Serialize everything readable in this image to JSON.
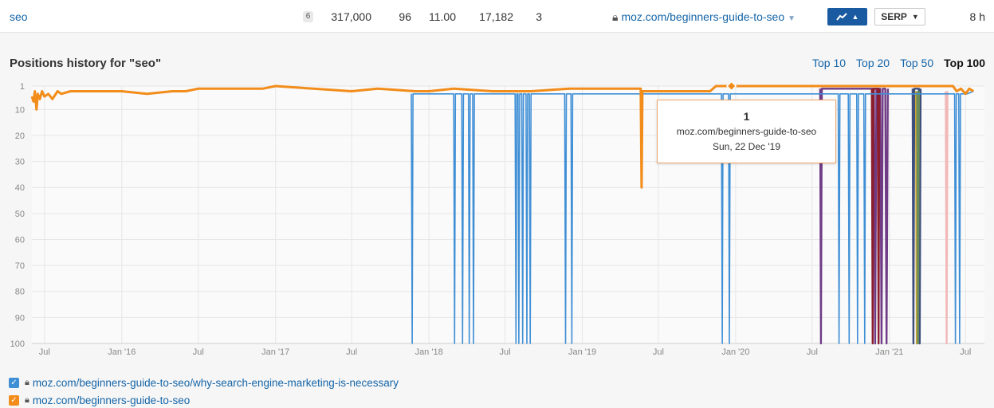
{
  "row": {
    "keyword": "seo",
    "serp_features": "6",
    "volume": "317,000",
    "kd": "96",
    "cpc": "11.00",
    "traffic": "17,182",
    "position": "3",
    "url": "moz.com/beginners-guide-to-seo",
    "serp_label": "SERP",
    "updated": "8 h",
    "trend_icon": "trend-line-icon",
    "accent": "#1a5aa0"
  },
  "section_title": "Positions history for \"seo\"",
  "tabs": [
    {
      "label": "Top 10"
    },
    {
      "label": "Top 20"
    },
    {
      "label": "Top 50"
    },
    {
      "label": "Top 100",
      "active": true
    }
  ],
  "tooltip": {
    "position": "1",
    "url": "moz.com/beginners-guide-to-seo",
    "date": "Sun, 22 Dec '19"
  },
  "legend": [
    {
      "url": "moz.com/beginners-guide-to-seo/why-search-engine-marketing-is-necessary",
      "color": "#3f8fd6",
      "checked": true
    },
    {
      "url": "moz.com/beginners-guide-to-seo",
      "color": "#f28c1a",
      "checked": true
    }
  ],
  "chart_data": {
    "type": "line",
    "y_reversed": true,
    "ylim": [
      1,
      100
    ],
    "y_ticks": [
      1,
      10,
      20,
      30,
      40,
      50,
      60,
      70,
      80,
      90,
      100
    ],
    "x_range": [
      "2015-06-01",
      "2021-08-15"
    ],
    "x_ticks": [
      {
        "date": "2015-07-01",
        "label": "Jul"
      },
      {
        "date": "2016-01-01",
        "label": "Jan '16"
      },
      {
        "date": "2016-07-01",
        "label": "Jul"
      },
      {
        "date": "2017-01-01",
        "label": "Jan '17"
      },
      {
        "date": "2017-07-01",
        "label": "Jul"
      },
      {
        "date": "2018-01-01",
        "label": "Jan '18"
      },
      {
        "date": "2018-07-01",
        "label": "Jul"
      },
      {
        "date": "2019-01-01",
        "label": "Jan '19"
      },
      {
        "date": "2019-07-01",
        "label": "Jul"
      },
      {
        "date": "2020-01-01",
        "label": "Jan '20"
      },
      {
        "date": "2020-07-01",
        "label": "Jul"
      },
      {
        "date": "2021-01-01",
        "label": "Jan '21"
      },
      {
        "date": "2021-07-01",
        "label": "Jul"
      }
    ],
    "grid": true,
    "series": [
      {
        "name": "moz.com/beginners-guide-to-seo/why-search-engine-marketing-is-necessary",
        "color": "#3f8fd6",
        "points": [
          [
            "2017-11-20",
            4
          ],
          [
            "2017-11-22",
            100
          ],
          [
            "2017-11-24",
            4
          ],
          [
            "2018-03-01",
            4
          ],
          [
            "2018-03-03",
            100
          ],
          [
            "2018-03-05",
            4
          ],
          [
            "2018-03-20",
            4
          ],
          [
            "2018-03-22",
            100
          ],
          [
            "2018-03-24",
            4
          ],
          [
            "2018-04-05",
            4
          ],
          [
            "2018-04-07",
            100
          ],
          [
            "2018-04-09",
            4
          ],
          [
            "2018-04-15",
            4
          ],
          [
            "2018-04-17",
            100
          ],
          [
            "2018-04-19",
            4
          ],
          [
            "2018-07-25",
            4
          ],
          [
            "2018-07-27",
            100
          ],
          [
            "2018-07-29",
            4
          ],
          [
            "2018-08-01",
            4
          ],
          [
            "2018-08-03",
            100
          ],
          [
            "2018-08-05",
            4
          ],
          [
            "2018-08-10",
            4
          ],
          [
            "2018-08-12",
            100
          ],
          [
            "2018-08-14",
            4
          ],
          [
            "2018-08-20",
            4
          ],
          [
            "2018-08-22",
            100
          ],
          [
            "2018-08-24",
            4
          ],
          [
            "2018-08-28",
            4
          ],
          [
            "2018-08-30",
            100
          ],
          [
            "2018-09-01",
            4
          ],
          [
            "2018-11-20",
            4
          ],
          [
            "2018-11-22",
            100
          ],
          [
            "2018-11-24",
            4
          ],
          [
            "2018-12-05",
            4
          ],
          [
            "2018-12-07",
            100
          ],
          [
            "2018-12-09",
            4
          ],
          [
            "2019-11-28",
            4
          ],
          [
            "2019-11-30",
            100
          ],
          [
            "2019-12-02",
            4
          ],
          [
            "2019-12-15",
            4
          ],
          [
            "2019-12-17",
            100
          ],
          [
            "2019-12-19",
            4
          ],
          [
            "2020-09-01",
            4
          ],
          [
            "2020-09-03",
            100
          ],
          [
            "2020-09-05",
            4
          ],
          [
            "2020-09-25",
            4
          ],
          [
            "2020-09-27",
            100
          ],
          [
            "2020-09-29",
            4
          ],
          [
            "2020-10-15",
            4
          ],
          [
            "2020-10-17",
            100
          ],
          [
            "2020-10-19",
            4
          ],
          [
            "2020-11-01",
            4
          ],
          [
            "2020-11-03",
            100
          ],
          [
            "2020-11-05",
            4
          ],
          [
            "2021-06-05",
            4
          ],
          [
            "2021-06-07",
            100
          ],
          [
            "2021-06-09",
            4
          ],
          [
            "2021-06-15",
            4
          ],
          [
            "2021-06-17",
            100
          ],
          [
            "2021-06-19",
            4
          ],
          [
            "2021-07-05",
            4
          ],
          [
            "2021-07-20",
            3
          ]
        ]
      },
      {
        "name": "moz.com/beginners-guide-to-seo",
        "color": "#f28c1a",
        "points": [
          [
            "2015-06-01",
            5
          ],
          [
            "2015-06-05",
            7
          ],
          [
            "2015-06-08",
            3
          ],
          [
            "2015-06-12",
            10
          ],
          [
            "2015-06-15",
            4
          ],
          [
            "2015-06-20",
            6
          ],
          [
            "2015-06-25",
            3
          ],
          [
            "2015-07-01",
            5
          ],
          [
            "2015-07-10",
            4
          ],
          [
            "2015-07-20",
            6
          ],
          [
            "2015-08-01",
            3
          ],
          [
            "2015-08-10",
            4
          ],
          [
            "2015-09-01",
            3
          ],
          [
            "2016-01-01",
            3
          ],
          [
            "2016-03-01",
            4
          ],
          [
            "2016-05-01",
            3
          ],
          [
            "2016-06-01",
            3
          ],
          [
            "2016-07-01",
            2
          ],
          [
            "2016-12-01",
            2
          ],
          [
            "2017-01-01",
            1
          ],
          [
            "2017-04-01",
            2
          ],
          [
            "2017-07-01",
            3
          ],
          [
            "2017-09-01",
            2
          ],
          [
            "2017-12-01",
            3
          ],
          [
            "2018-01-01",
            3
          ],
          [
            "2018-03-01",
            2
          ],
          [
            "2018-06-01",
            3
          ],
          [
            "2018-07-01",
            3
          ],
          [
            "2018-09-01",
            3
          ],
          [
            "2018-12-01",
            2
          ],
          [
            "2019-03-01",
            2
          ],
          [
            "2019-05-01",
            2
          ],
          [
            "2019-05-20",
            2
          ],
          [
            "2019-05-22",
            40
          ],
          [
            "2019-05-24",
            3
          ],
          [
            "2019-06-01",
            3
          ],
          [
            "2019-09-01",
            3
          ],
          [
            "2019-11-01",
            3
          ],
          [
            "2019-11-15",
            1
          ],
          [
            "2019-12-22",
            1
          ],
          [
            "2020-03-01",
            1
          ],
          [
            "2020-07-01",
            1
          ],
          [
            "2020-10-01",
            1
          ],
          [
            "2021-01-01",
            1
          ],
          [
            "2021-05-01",
            1
          ],
          [
            "2021-06-01",
            1
          ],
          [
            "2021-06-10",
            3
          ],
          [
            "2021-06-20",
            2
          ],
          [
            "2021-07-01",
            4
          ],
          [
            "2021-07-10",
            2
          ],
          [
            "2021-07-20",
            3
          ]
        ]
      },
      {
        "name": "",
        "color": "#6f3b86",
        "points": [
          [
            "2020-07-20",
            2
          ],
          [
            "2020-07-22",
            100
          ],
          [
            "2020-07-24",
            2
          ],
          [
            "2020-11-25",
            2
          ],
          [
            "2020-11-28",
            100
          ],
          [
            "2020-12-01",
            2
          ],
          [
            "2020-12-10",
            2
          ],
          [
            "2020-12-13",
            100
          ],
          [
            "2020-12-16",
            2
          ],
          [
            "2020-12-22",
            2
          ],
          [
            "2020-12-25",
            100
          ],
          [
            "2020-12-28",
            2
          ]
        ]
      },
      {
        "name": "",
        "color": "#8b1e2e",
        "points": [
          [
            "2020-11-20",
            2
          ],
          [
            "2020-11-22",
            100
          ],
          [
            "2020-11-24",
            2
          ],
          [
            "2020-12-04",
            2
          ],
          [
            "2020-12-06",
            100
          ],
          [
            "2020-12-08",
            2
          ]
        ]
      },
      {
        "name": "",
        "color": "#3e4f7d",
        "points": [
          [
            "2021-02-25",
            2
          ],
          [
            "2021-02-27",
            100
          ],
          [
            "2021-03-01",
            2
          ],
          [
            "2021-03-12",
            2
          ],
          [
            "2021-03-14",
            100
          ],
          [
            "2021-03-16",
            2
          ]
        ]
      },
      {
        "name": "",
        "color": "#c9a43a",
        "points": [
          [
            "2021-03-05",
            3
          ],
          [
            "2021-03-07",
            100
          ],
          [
            "2021-03-09",
            3
          ]
        ]
      },
      {
        "name": "",
        "color": "#6a8b5a",
        "points": [
          [
            "2021-03-08",
            3
          ],
          [
            "2021-03-10",
            100
          ],
          [
            "2021-03-12",
            3
          ]
        ]
      },
      {
        "name": "",
        "color": "#f2b8b8",
        "points": [
          [
            "2021-05-15",
            3
          ],
          [
            "2021-05-17",
            100
          ],
          [
            "2021-05-19",
            3
          ]
        ]
      }
    ]
  }
}
